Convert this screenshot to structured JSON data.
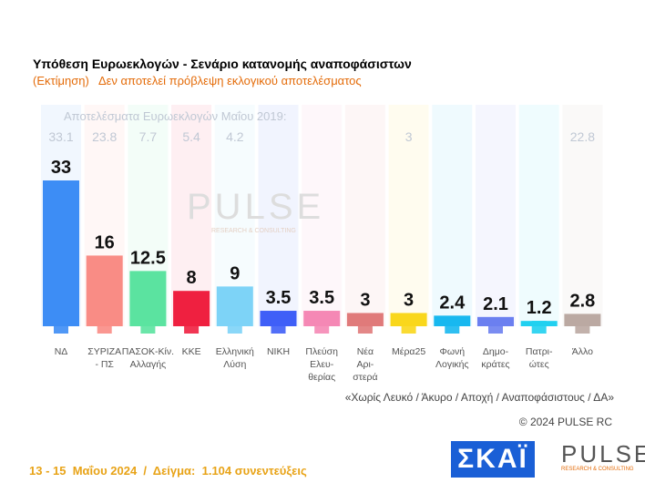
{
  "title": "Υπόθεση Ευρωεκλογών - Σενάριο κατανομής αναποφάσιστων",
  "subtitle": "(Εκτίμηση)   Δεν αποτελεί πρόβλεψη εκλογικού αποτελέσματος",
  "watermark": "PULSE",
  "watermark_sub": "RESEARCH & CONSULTING",
  "chart_data": {
    "type": "bar",
    "title": "Υπόθεση Ευρωεκλογών - Σενάριο κατανομής αναποφάσιστων",
    "categories": [
      "ΝΔ",
      "ΣΥΡΙΖΑ - ΠΣ",
      "ΠΑΣΟΚ-Κίν. Αλλαγής",
      "ΚΚΕ",
      "Ελληνική Λύση",
      "ΝΙΚΗ",
      "Πλεύση Ελευ- θερίας",
      "Νέα Αρι- στερά",
      "Μέρα25",
      "Φωνή Λογικής",
      "Δημο- κράτες",
      "Πατρι- ώτες",
      "Άλλο"
    ],
    "label_lines": [
      [
        "ΝΔ"
      ],
      [
        "ΣΥΡΙΖΑ",
        "- ΠΣ"
      ],
      [
        "ΠΑΣΟΚ-Κίν.",
        "Αλλαγής"
      ],
      [
        "ΚΚΕ"
      ],
      [
        "Ελληνική",
        "Λύση"
      ],
      [
        "ΝΙΚΗ"
      ],
      [
        "Πλεύση",
        "Ελευ-",
        "θερίας"
      ],
      [
        "Νέα",
        "Αρι-",
        "στερά"
      ],
      [
        "Μέρα25"
      ],
      [
        "Φωνή",
        "Λογικής"
      ],
      [
        "Δημο-",
        "κράτες"
      ],
      [
        "Πατρι-",
        "ώτες"
      ],
      [
        "Άλλο"
      ]
    ],
    "values": [
      33,
      16,
      12.5,
      8,
      9,
      3.5,
      3.5,
      3,
      3,
      2.4,
      2.1,
      1.2,
      2.8
    ],
    "value_labels": [
      "33",
      "16",
      "12.5",
      "8",
      "9",
      "3.5",
      "3.5",
      "3",
      "3",
      "2.4",
      "2.1",
      "1.2",
      "2.8"
    ],
    "previous_title": "Αποτελέσματα Ευρωεκλογών Μαΐου 2019:",
    "previous_labels": [
      "33.1",
      "23.8",
      "7.7",
      "5.4",
      "4.2",
      "",
      "",
      "",
      "3",
      "",
      "",
      "",
      "22.8"
    ],
    "colors": [
      "#3d8df5",
      "#f98c85",
      "#5be3a0",
      "#ef2040",
      "#7dd3f7",
      "#3f5ff7",
      "#f588b5",
      "#e07a7a",
      "#f9d71c",
      "#18b8ef",
      "#6b7ff0",
      "#20d0f0",
      "#bba9a2"
    ],
    "ylim": [
      0,
      50
    ],
    "grid": false
  },
  "note": "«Χωρίς Λευκό / Άκυρο / Αποχή / Αναποφάσιστους / ΔΑ»",
  "copyright": "© 2024 PULSE RC",
  "footer": "13 - 15  Μαΐου 2024  /  Δείγμα:  1.104 συνεντεύξεις",
  "logos": {
    "skai": "ΣΚΑΪ",
    "pulse": "PULSE",
    "pulse_sub": "RESEARCH & CONSULTING"
  }
}
